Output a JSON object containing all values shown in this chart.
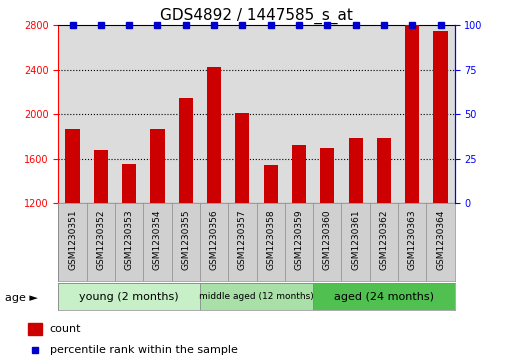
{
  "title": "GDS4892 / 1447585_s_at",
  "samples": [
    "GSM1230351",
    "GSM1230352",
    "GSM1230353",
    "GSM1230354",
    "GSM1230355",
    "GSM1230356",
    "GSM1230357",
    "GSM1230358",
    "GSM1230359",
    "GSM1230360",
    "GSM1230361",
    "GSM1230362",
    "GSM1230363",
    "GSM1230364"
  ],
  "counts": [
    1870,
    1680,
    1555,
    1870,
    2150,
    2430,
    2010,
    1540,
    1720,
    1700,
    1790,
    1790,
    2800,
    2750
  ],
  "percentiles": [
    100,
    100,
    100,
    100,
    100,
    100,
    100,
    100,
    100,
    100,
    100,
    100,
    100,
    100
  ],
  "groups": [
    {
      "label": "young (2 months)",
      "start": 0,
      "end": 5,
      "color": "#C8F0C8"
    },
    {
      "label": "middle aged (12 months)",
      "start": 5,
      "end": 9,
      "color": "#A8E0A8"
    },
    {
      "label": "aged (24 months)",
      "start": 9,
      "end": 14,
      "color": "#50C050"
    }
  ],
  "ylim_left": [
    1200,
    2800
  ],
  "ylim_right": [
    0,
    100
  ],
  "yticks_left": [
    1200,
    1600,
    2000,
    2400,
    2800
  ],
  "yticks_right": [
    0,
    25,
    50,
    75,
    100
  ],
  "bar_color": "#CC0000",
  "dot_color": "#0000CC",
  "dot_size": 5,
  "bar_width": 0.5,
  "grid_color": "black",
  "plot_bg": "#DCDCDC",
  "tick_area_bg": "#D0D0D0",
  "age_label": "age ►",
  "legend_count_label": "count",
  "legend_percentile_label": "percentile rank within the sample",
  "title_fontsize": 11,
  "tick_fontsize": 7,
  "label_fontsize": 8
}
